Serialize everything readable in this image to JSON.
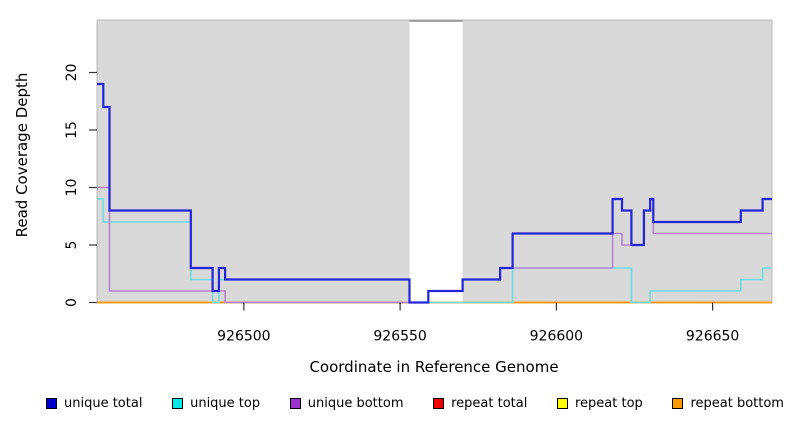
{
  "figure": {
    "xlabel": "Coordinate in Reference Genome",
    "ylabel": "Read Coverage Depth",
    "plot_bg": "#d9d9d9",
    "box_color": "#b9b9b9",
    "tick_color": "#333333"
  },
  "chart_data": {
    "type": "line",
    "step_interpolation": true,
    "x_domain": [
      926453,
      926669
    ],
    "ylim": [
      0,
      24.5
    ],
    "x_ticks": [
      926500,
      926550,
      926600,
      926650
    ],
    "y_ticks": [
      0,
      5,
      10,
      15,
      20
    ],
    "xlabel": "Coordinate in Reference Genome",
    "ylabel": "Read Coverage Depth",
    "grid": false,
    "legend_position": "bottom",
    "masked_region": {
      "start": 926553,
      "end": 926570,
      "fill": "#ffffff",
      "edge": "#8f8f8f"
    },
    "series": [
      {
        "name": "unique total",
        "color": "#2424d8",
        "swatch": "#0000cc",
        "width": 2.2,
        "steps": [
          [
            926453,
            19
          ],
          [
            926455,
            17
          ],
          [
            926457,
            8
          ],
          [
            926483,
            3
          ],
          [
            926490,
            1
          ],
          [
            926492,
            3
          ],
          [
            926494,
            2
          ],
          [
            926553,
            0
          ],
          [
            926559,
            1
          ],
          [
            926570,
            2
          ],
          [
            926582,
            3
          ],
          [
            926586,
            6
          ],
          [
            926618,
            9
          ],
          [
            926621,
            8
          ],
          [
            926624,
            5
          ],
          [
            926628,
            8
          ],
          [
            926630,
            9
          ],
          [
            926631,
            7
          ],
          [
            926659,
            8
          ],
          [
            926666,
            9
          ]
        ]
      },
      {
        "name": "unique top",
        "color": "#6edce2",
        "swatch": "#00e8e8",
        "width": 1.6,
        "steps": [
          [
            926453,
            9
          ],
          [
            926455,
            7
          ],
          [
            926483,
            2
          ],
          [
            926490,
            0
          ],
          [
            926492,
            2
          ],
          [
            926553,
            0
          ],
          [
            926586,
            3
          ],
          [
            926624,
            0
          ],
          [
            926630,
            1
          ],
          [
            926659,
            2
          ],
          [
            926666,
            3
          ]
        ]
      },
      {
        "name": "unique bottom",
        "color": "#b583d6",
        "swatch": "#9933cc",
        "width": 1.6,
        "steps": [
          [
            926453,
            10
          ],
          [
            926457,
            1
          ],
          [
            926494,
            0
          ],
          [
            926559,
            1
          ],
          [
            926570,
            2
          ],
          [
            926582,
            3
          ],
          [
            926618,
            6
          ],
          [
            926621,
            5
          ],
          [
            926628,
            8
          ],
          [
            926631,
            6
          ]
        ]
      },
      {
        "name": "repeat total",
        "color": "#cc2222",
        "swatch": "#ee0000",
        "width": 1.6,
        "steps": [
          [
            926453,
            0
          ]
        ]
      },
      {
        "name": "repeat top",
        "color": "#eeee22",
        "swatch": "#ffff00",
        "width": 1.6,
        "steps": [
          [
            926453,
            0
          ]
        ]
      },
      {
        "name": "repeat bottom",
        "color": "#ff9c14",
        "swatch": "#ff9900",
        "width": 2,
        "steps": [
          [
            926453,
            0
          ]
        ]
      }
    ],
    "paint_order": [
      "repeat top",
      "repeat total",
      "repeat bottom",
      "unique top",
      "unique bottom",
      "unique total"
    ]
  }
}
